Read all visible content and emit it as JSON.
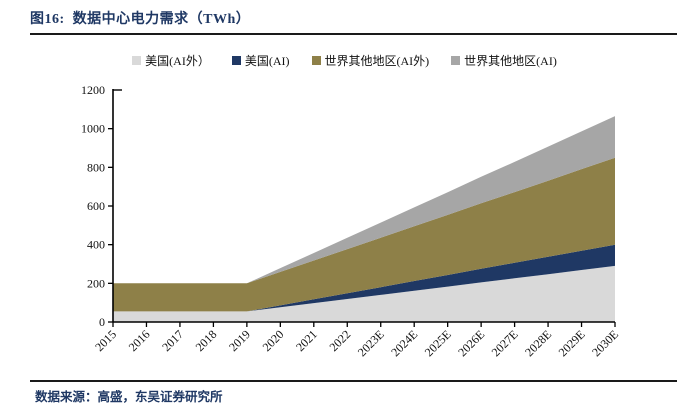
{
  "page": {
    "title": "图16:  数据中心电力需求（TWh）",
    "source": "数据来源：高盛，东吴证券研究所",
    "accent_color": "#1f3864",
    "rule_color": "#1a1a1a"
  },
  "chart_data": {
    "type": "area",
    "stacked": true,
    "title": "数据中心电力需求（TWh）",
    "categories": [
      "2015",
      "2016",
      "2017",
      "2018",
      "2019",
      "2020",
      "2021",
      "2022",
      "2023E",
      "2024E",
      "2025E",
      "2026E",
      "2027E",
      "2028E",
      "2029E",
      "2030E"
    ],
    "series": [
      {
        "name": "美国(AI外）",
        "color": "#d9d9d9",
        "values": [
          55,
          55,
          55,
          55,
          55,
          76,
          98,
          119,
          140,
          162,
          183,
          205,
          226,
          247,
          269,
          290
        ]
      },
      {
        "name": "美国(AI)",
        "color": "#1f3864",
        "values": [
          0,
          0,
          0,
          0,
          0,
          10,
          20,
          30,
          40,
          50,
          60,
          70,
          80,
          90,
          100,
          110
        ]
      },
      {
        "name": "世界其他地区(AI外)",
        "color": "#8e8048",
        "values": [
          145,
          145,
          145,
          145,
          145,
          173,
          200,
          228,
          256,
          283,
          311,
          339,
          366,
          394,
          422,
          450
        ]
      },
      {
        "name": "世界其他地区(AI)",
        "color": "#a6a6a6",
        "values": [
          0,
          0,
          0,
          0,
          0,
          20,
          39,
          59,
          78,
          98,
          117,
          137,
          156,
          176,
          195,
          215
        ]
      }
    ],
    "xlabel": "",
    "ylabel": "",
    "ylim": [
      0,
      1200
    ],
    "yticks": [
      0,
      200,
      400,
      600,
      800,
      1000,
      1200
    ],
    "legend_position": "top",
    "grid": false,
    "axis_color": "#000000"
  }
}
